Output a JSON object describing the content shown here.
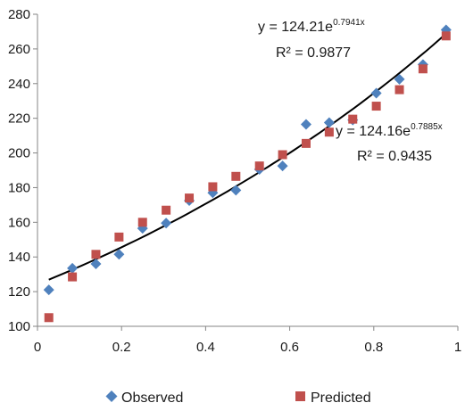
{
  "chart_data": {
    "type": "scatter",
    "title": "",
    "xlabel": "",
    "ylabel": "",
    "xlim": [
      0,
      1
    ],
    "ylim": [
      100,
      280
    ],
    "x_ticks": [
      0,
      0.2,
      0.4,
      0.6,
      0.8,
      1
    ],
    "x_tick_labels": [
      "0",
      "0.2",
      "0.4",
      "0.6",
      "0.8",
      "1"
    ],
    "y_ticks": [
      100,
      120,
      140,
      160,
      180,
      200,
      220,
      240,
      260,
      280
    ],
    "y_tick_labels": [
      "100",
      "120",
      "140",
      "160",
      "180",
      "200",
      "220",
      "240",
      "260",
      "280"
    ],
    "grid": false,
    "legend_position": "bottom",
    "series": [
      {
        "name": "Observed",
        "marker": "diamond",
        "color": "#4F81BD",
        "x": [
          0.027,
          0.083,
          0.139,
          0.194,
          0.25,
          0.306,
          0.361,
          0.417,
          0.472,
          0.528,
          0.583,
          0.639,
          0.694,
          0.75,
          0.806,
          0.861,
          0.917,
          0.972
        ],
        "y": [
          121,
          133.5,
          136,
          141.5,
          156.5,
          159.5,
          172.5,
          177,
          178.5,
          190.5,
          192.5,
          216.5,
          217.5,
          219,
          234.5,
          242.5,
          251,
          271
        ]
      },
      {
        "name": "Predicted",
        "marker": "square",
        "color": "#C0504D",
        "x": [
          0.027,
          0.083,
          0.139,
          0.194,
          0.25,
          0.306,
          0.361,
          0.417,
          0.472,
          0.528,
          0.583,
          0.639,
          0.694,
          0.75,
          0.806,
          0.861,
          0.917,
          0.972
        ],
        "y": [
          105,
          128.5,
          141.5,
          151.5,
          160,
          167,
          174,
          180.5,
          186.5,
          192.5,
          199,
          205.5,
          212,
          219.5,
          227,
          236.5,
          248.5,
          267.5
        ]
      }
    ],
    "trendlines": [
      {
        "series": "Observed",
        "type": "exponential",
        "a": 124.21,
        "b": 0.7941,
        "equation_text": "y = 124.21e",
        "exponent_text": "0.7941x",
        "r2_text": "R² = 0.9877",
        "x_range": [
          0.027,
          0.972
        ]
      }
    ],
    "annotations": [
      {
        "series": "Predicted",
        "equation_text": "y = 124.16e",
        "exponent_text": "0.7885x",
        "r2_text": "R² = 0.9435"
      }
    ]
  }
}
